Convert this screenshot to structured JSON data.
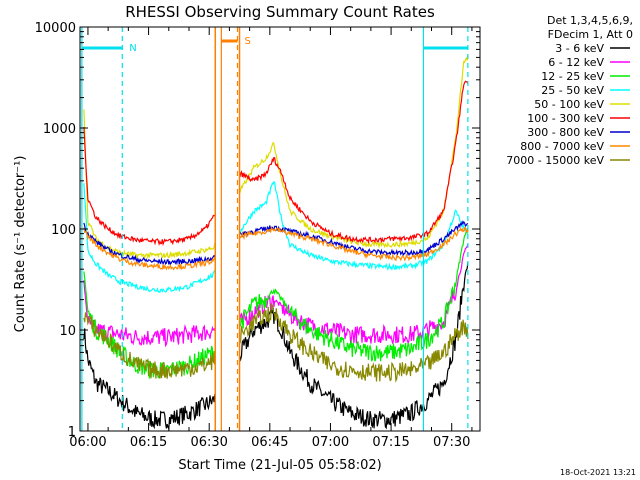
{
  "chart_data": {
    "type": "line",
    "title": "RHESSI Observing Summary Count Rates",
    "xlabel": "Start Time (21-Jul-05 05:58:02)",
    "ylabel": "Count Rate (s⁻¹ detector⁻¹)",
    "y_scale": "log",
    "ylim": [
      1,
      10000
    ],
    "xlim": [
      "05:58:02",
      "07:37:00"
    ],
    "x_ticks": [
      "06:00",
      "06:15",
      "06:30",
      "06:45",
      "07:00",
      "07:15",
      "07:30"
    ],
    "y_ticks": [
      "1",
      "10",
      "100",
      "1000",
      "10000"
    ],
    "legend_header": [
      "Det 1,3,4,5,6,9,",
      "FDecim 1, Att 0"
    ],
    "footer": "18-Oct-2021 13:21",
    "markers": {
      "night": {
        "label": "N",
        "start": "05:58:30",
        "end": "06:08:30",
        "color": "#00e0ee"
      },
      "night2": {
        "label": "",
        "start": "07:23:00",
        "end": "07:34:00",
        "color": "#00e0ee"
      },
      "saa": {
        "label": "S",
        "start": "06:33:00",
        "end": "06:37:00",
        "color": "#ff7f00"
      }
    },
    "gaps": [
      [
        "06:31:30",
        "06:37:30"
      ]
    ],
    "series": [
      {
        "name": "3 - 6 keV",
        "color": "#000000",
        "x": [
          "05:59",
          "06:00",
          "06:02",
          "06:05",
          "06:08",
          "06:12",
          "06:16",
          "06:20",
          "06:25",
          "06:29",
          "06:31",
          "06:38",
          "06:41",
          "06:44",
          "06:46",
          "06:48",
          "06:50",
          "06:55",
          "07:00",
          "07:05",
          "07:10",
          "07:15",
          "07:20",
          "07:24",
          "07:28",
          "07:31",
          "07:33",
          "07:34"
        ],
        "values": [
          10,
          5,
          3,
          2.5,
          2,
          1.5,
          1.3,
          1.3,
          1.5,
          1.8,
          2,
          6,
          10,
          12,
          14,
          10,
          6,
          3,
          2,
          1.5,
          1.3,
          1.3,
          1.5,
          2,
          3,
          8,
          30,
          45
        ]
      },
      {
        "name": "6 - 12 keV",
        "color": "#ff00ff",
        "x": [
          "05:59",
          "06:00",
          "06:02",
          "06:05",
          "06:08",
          "06:12",
          "06:16",
          "06:20",
          "06:25",
          "06:29",
          "06:31",
          "06:38",
          "06:41",
          "06:44",
          "06:46",
          "06:48",
          "06:50",
          "06:55",
          "07:00",
          "07:05",
          "07:10",
          "07:15",
          "07:20",
          "07:24",
          "07:28",
          "07:31",
          "07:33",
          "07:34"
        ],
        "values": [
          30,
          12,
          10,
          9.5,
          9,
          8.5,
          8.5,
          8.5,
          9,
          9.5,
          10,
          12,
          15,
          18,
          20,
          17,
          14,
          11,
          10,
          9,
          9,
          9,
          9,
          10,
          12,
          25,
          55,
          70
        ]
      },
      {
        "name": "12 - 25 keV",
        "color": "#00ee00",
        "x": [
          "05:59",
          "06:00",
          "06:02",
          "06:05",
          "06:08",
          "06:12",
          "06:16",
          "06:20",
          "06:25",
          "06:29",
          "06:31",
          "06:38",
          "06:41",
          "06:44",
          "06:46",
          "06:48",
          "06:50",
          "06:55",
          "07:00",
          "07:05",
          "07:10",
          "07:15",
          "07:20",
          "07:24",
          "07:28",
          "07:31",
          "07:33",
          "07:34"
        ],
        "values": [
          40,
          15,
          10,
          8,
          6,
          4.5,
          4,
          4,
          4.5,
          5.5,
          6,
          12,
          18,
          20,
          25,
          20,
          15,
          10,
          8,
          6.5,
          6,
          6,
          6.5,
          8,
          12,
          30,
          80,
          100
        ]
      },
      {
        "name": "25 - 50 keV",
        "color": "#00ffff",
        "x": [
          "05:59",
          "06:00",
          "06:02",
          "06:05",
          "06:08",
          "06:12",
          "06:16",
          "06:20",
          "06:25",
          "06:29",
          "06:31",
          "06:38",
          "06:41",
          "06:44",
          "06:46",
          "06:48",
          "06:50",
          "06:55",
          "07:00",
          "07:05",
          "07:10",
          "07:15",
          "07:20",
          "07:24",
          "07:28",
          "07:31",
          "07:33",
          "07:34"
        ],
        "values": [
          300,
          60,
          45,
          35,
          30,
          27,
          25,
          25,
          27,
          32,
          35,
          100,
          150,
          180,
          300,
          120,
          70,
          55,
          48,
          45,
          43,
          42,
          43,
          48,
          70,
          150,
          100,
          95
        ]
      },
      {
        "name": "50 - 100 keV",
        "color": "#dddd00",
        "x": [
          "05:59",
          "06:00",
          "06:02",
          "06:05",
          "06:08",
          "06:12",
          "06:16",
          "06:20",
          "06:25",
          "06:29",
          "06:31",
          "06:38",
          "06:41",
          "06:44",
          "06:46",
          "06:48",
          "06:50",
          "06:55",
          "07:00",
          "07:05",
          "07:10",
          "07:15",
          "07:20",
          "07:24",
          "07:28",
          "07:31",
          "07:33",
          "07:34"
        ],
        "values": [
          1600,
          120,
          80,
          65,
          58,
          55,
          55,
          55,
          58,
          62,
          65,
          250,
          400,
          500,
          700,
          300,
          150,
          100,
          85,
          75,
          70,
          70,
          72,
          80,
          150,
          800,
          4500,
          5000
        ]
      },
      {
        "name": "100 - 300 keV",
        "color": "#ff0000",
        "x": [
          "05:59",
          "06:00",
          "06:02",
          "06:05",
          "06:08",
          "06:12",
          "06:16",
          "06:20",
          "06:25",
          "06:29",
          "06:31",
          "06:38",
          "06:41",
          "06:44",
          "06:46",
          "06:48",
          "06:50",
          "06:55",
          "07:00",
          "07:05",
          "07:10",
          "07:15",
          "07:20",
          "07:24",
          "07:28",
          "07:31",
          "07:33",
          "07:34"
        ],
        "values": [
          1000,
          200,
          130,
          100,
          85,
          78,
          75,
          75,
          80,
          100,
          130,
          350,
          300,
          350,
          500,
          350,
          200,
          120,
          90,
          80,
          78,
          80,
          82,
          90,
          150,
          700,
          2800,
          2900
        ]
      },
      {
        "name": "300 - 800 keV",
        "color": "#0000cc",
        "x": [
          "05:59",
          "06:00",
          "06:02",
          "06:05",
          "06:08",
          "06:12",
          "06:16",
          "06:20",
          "06:25",
          "06:29",
          "06:31",
          "06:38",
          "06:41",
          "06:44",
          "06:46",
          "06:48",
          "06:50",
          "06:55",
          "07:00",
          "07:05",
          "07:10",
          "07:15",
          "07:20",
          "07:24",
          "07:28",
          "07:31",
          "07:33",
          "07:34"
        ],
        "values": [
          110,
          90,
          75,
          62,
          55,
          50,
          48,
          47,
          48,
          50,
          52,
          90,
          95,
          100,
          105,
          100,
          95,
          85,
          75,
          65,
          60,
          58,
          58,
          62,
          80,
          100,
          115,
          110
        ]
      },
      {
        "name": "800 - 7000 keV",
        "color": "#ff8800",
        "x": [
          "05:59",
          "06:00",
          "06:02",
          "06:05",
          "06:08",
          "06:12",
          "06:16",
          "06:20",
          "06:25",
          "06:29",
          "06:31",
          "06:38",
          "06:41",
          "06:44",
          "06:46",
          "06:48",
          "06:50",
          "06:55",
          "07:00",
          "07:05",
          "07:10",
          "07:15",
          "07:20",
          "07:24",
          "07:28",
          "07:31",
          "07:33",
          "07:34"
        ],
        "values": [
          100,
          85,
          70,
          58,
          50,
          45,
          43,
          42,
          43,
          46,
          48,
          85,
          90,
          95,
          100,
          95,
          90,
          80,
          70,
          60,
          55,
          52,
          52,
          56,
          70,
          90,
          100,
          95
        ]
      },
      {
        "name": "7000 - 15000 keV",
        "color": "#888800",
        "x": [
          "05:59",
          "06:00",
          "06:02",
          "06:05",
          "06:08",
          "06:12",
          "06:16",
          "06:20",
          "06:25",
          "06:29",
          "06:31",
          "06:38",
          "06:41",
          "06:44",
          "06:46",
          "06:48",
          "06:50",
          "06:55",
          "07:00",
          "07:05",
          "07:10",
          "07:15",
          "07:20",
          "07:24",
          "07:28",
          "07:31",
          "07:33",
          "07:34"
        ],
        "values": [
          15,
          12,
          10,
          8,
          6,
          4.5,
          4,
          4,
          4.2,
          4.5,
          5,
          9,
          12,
          14,
          15,
          12,
          9,
          6,
          4.5,
          4,
          3.8,
          3.8,
          4,
          4.5,
          6,
          9,
          11,
          10
        ]
      }
    ]
  }
}
